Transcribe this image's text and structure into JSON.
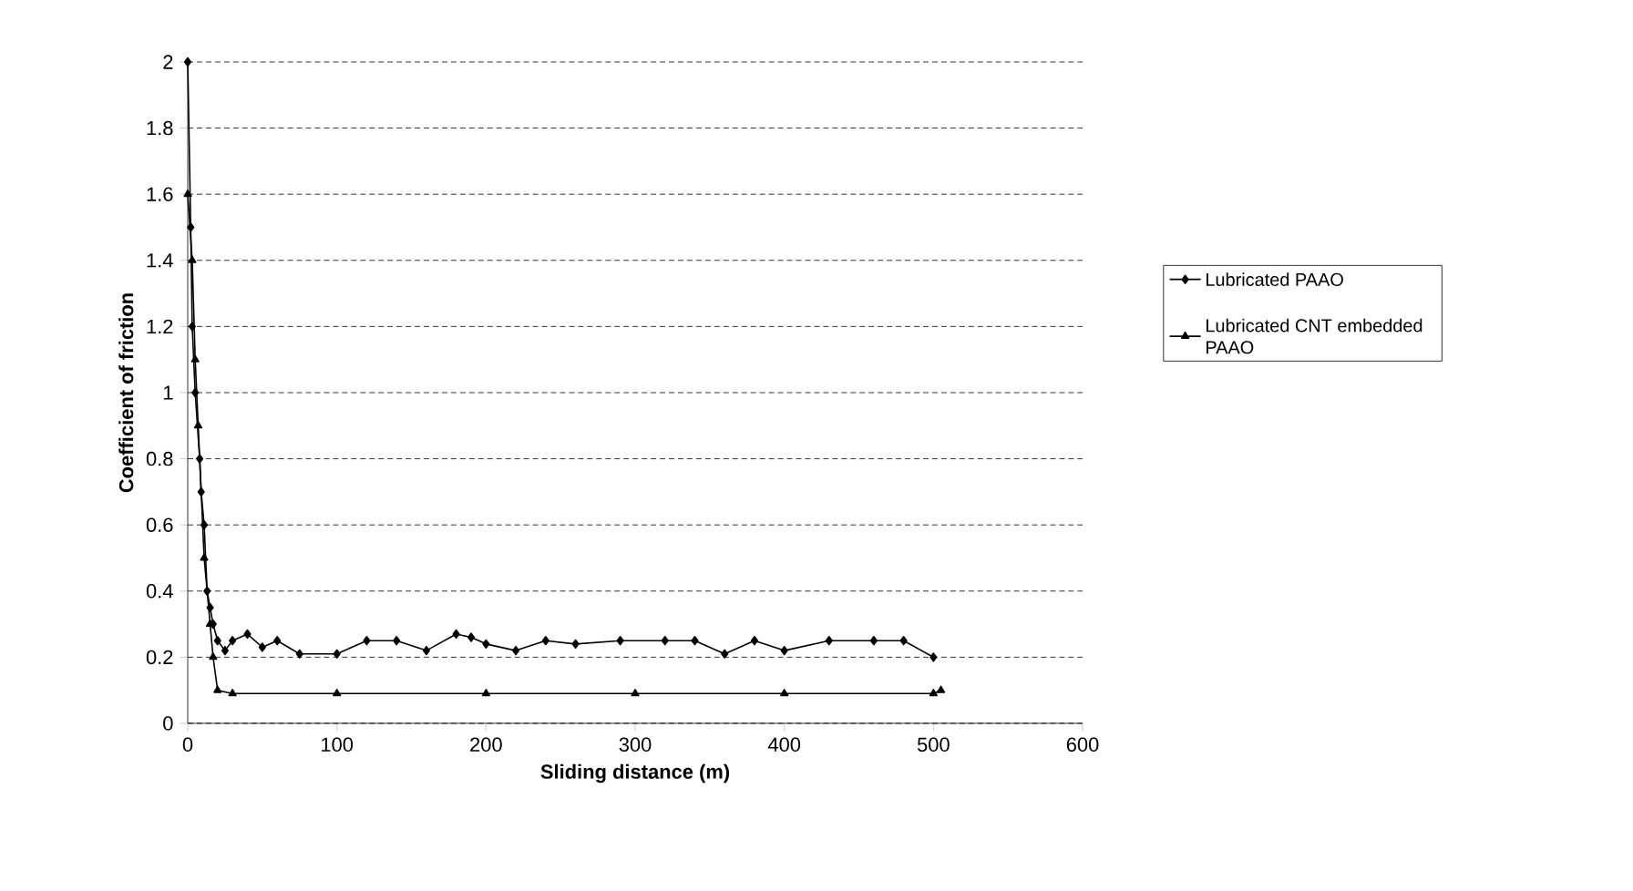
{
  "chart_data": {
    "type": "line",
    "xlabel": "Sliding distance (m)",
    "ylabel": "Coefficient of friction",
    "xlim": [
      0,
      600
    ],
    "xticks": [
      0,
      100,
      200,
      300,
      400,
      500,
      600
    ],
    "ylim": [
      0,
      2
    ],
    "yticks": [
      0,
      0.2,
      0.4,
      0.6,
      0.8,
      1,
      1.2,
      1.4,
      1.6,
      1.8,
      2
    ],
    "grid": "y",
    "legend": "right",
    "series": [
      {
        "name": "Lubricated PAAO",
        "color": "#000000",
        "marker": "diamond",
        "x": [
          0,
          2,
          3,
          5,
          8,
          9,
          11,
          13,
          15,
          17,
          20,
          25,
          30,
          40,
          50,
          60,
          75,
          100,
          120,
          140,
          160,
          180,
          190,
          200,
          220,
          240,
          260,
          290,
          320,
          340,
          360,
          380,
          400,
          430,
          460,
          480,
          500
        ],
        "values": [
          2.0,
          1.5,
          1.2,
          1.0,
          0.8,
          0.7,
          0.6,
          0.4,
          0.35,
          0.3,
          0.25,
          0.22,
          0.25,
          0.27,
          0.23,
          0.25,
          0.21,
          0.21,
          0.25,
          0.25,
          0.22,
          0.27,
          0.26,
          0.24,
          0.22,
          0.25,
          0.24,
          0.25,
          0.25,
          0.25,
          0.21,
          0.25,
          0.22,
          0.25,
          0.25,
          0.25,
          0.2
        ]
      },
      {
        "name": "Lubricated CNT embedded PAAO",
        "color": "#000000",
        "marker": "triangle",
        "x": [
          0,
          3,
          5,
          7,
          11,
          15,
          17,
          20,
          30,
          100,
          200,
          300,
          400,
          500,
          505
        ],
        "values": [
          1.6,
          1.4,
          1.1,
          0.9,
          0.5,
          0.3,
          0.2,
          0.1,
          0.09,
          0.09,
          0.09,
          0.09,
          0.09,
          0.09,
          0.1
        ]
      }
    ]
  }
}
